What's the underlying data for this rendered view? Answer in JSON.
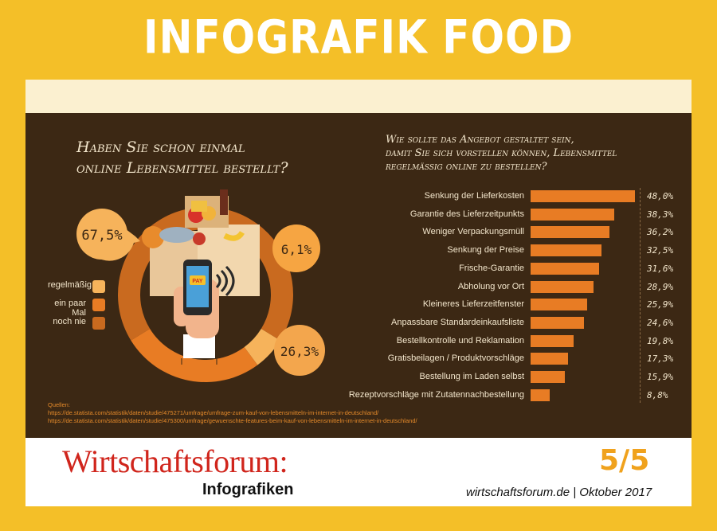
{
  "title": "INFOGRAFIK FOOD",
  "colors": {
    "frame": "#f4bf28",
    "panel": "#3c2814",
    "bar": "#e87c24",
    "regelmaessig": "#f6b35b",
    "ein_paar_mal": "#e87c24",
    "noch_nie": "#c96a1f",
    "brand": "#d0251c",
    "pagenum": "#f0a21d"
  },
  "left": {
    "question_line1": "Haben Sie schon einmal",
    "question_line2": "online Lebensmittel bestellt?",
    "legend": [
      "regelmäßig",
      "ein paar Mal",
      "noch nie"
    ]
  },
  "right": {
    "question_line1": "Wie sollte das Angebot gestaltet sein,",
    "question_line2": "damit Sie sich vorstellen können, Lebensmittel",
    "question_line3": "regelmäßig online zu bestellen?"
  },
  "sources": {
    "heading": "Quellen:",
    "line1": "https://de.statista.com/statistik/daten/studie/475271/umfrage/umfrage-zum-kauf-von-lebensmitteln-im-internet-in-deutschland/",
    "line2": "https://de.statista.com/statistik/daten/studie/475300/umfrage/gewuenschte-features-beim-kauf-von-lebensmitteln-im-internet-in-deutschland/"
  },
  "footer": {
    "brand": "Wirtschaftsforum:",
    "brand_sub": "Infografiken",
    "page": "5/5",
    "site": "wirtschaftsforum.de | Oktober 2017"
  },
  "phone_label": "PAY",
  "chart_data": [
    {
      "type": "pie",
      "title": "Haben Sie schon einmal online Lebensmittel bestellt?",
      "categories": [
        "noch nie",
        "regelmäßig",
        "ein paar Mal"
      ],
      "values": [
        67.5,
        6.1,
        26.3
      ],
      "labels": [
        "67,5%",
        "6,1%",
        "26,3%"
      ]
    },
    {
      "type": "bar",
      "title": "Wie sollte das Angebot gestaltet sein, damit Sie sich vorstellen können, Lebensmittel regelmäßig online zu bestellen?",
      "categories": [
        "Senkung der Lieferkosten",
        "Garantie des Lieferzeitpunkts",
        "Weniger Verpackungsmüll",
        "Senkung der Preise",
        "Frische-Garantie",
        "Abholung vor Ort",
        "Kleineres Lieferzeitfenster",
        "Anpassbare Standardeinkaufsliste",
        "Bestellkontrolle und Reklamation",
        "Gratisbeilagen / Produktvorschläge",
        "Bestellung im Laden selbst",
        "Rezeptvorschläge mit Zutatennachbestellung"
      ],
      "values": [
        48.0,
        38.3,
        36.2,
        32.5,
        31.6,
        28.9,
        25.9,
        24.6,
        19.8,
        17.3,
        15.9,
        8.8
      ],
      "labels": [
        "48,0%",
        "38,3%",
        "36,2%",
        "32,5%",
        "31,6%",
        "28,9%",
        "25,9%",
        "24,6%",
        "19,8%",
        "17,3%",
        "15,9%",
        "8,8%"
      ],
      "xlim": [
        0,
        48
      ]
    }
  ]
}
